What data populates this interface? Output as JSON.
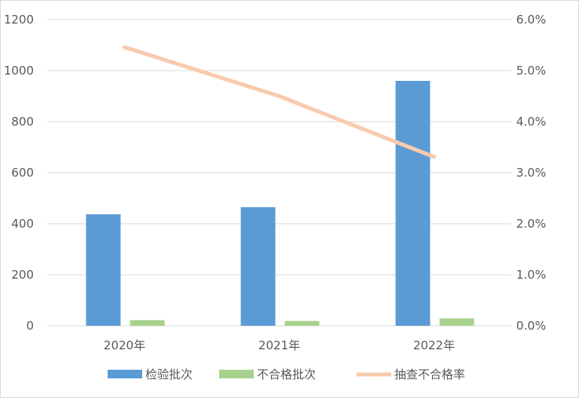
{
  "chart_data": {
    "type": "bar",
    "categories": [
      "2020年",
      "2021年",
      "2022年"
    ],
    "series": [
      {
        "name": "检验批次",
        "type": "bar",
        "axis": "left",
        "color": "#5b9bd5",
        "values": [
          437,
          465,
          960
        ]
      },
      {
        "name": "不合格批次",
        "type": "bar",
        "axis": "left",
        "color": "#a9d18e",
        "values": [
          22,
          19,
          29
        ]
      },
      {
        "name": "抽查不合格率",
        "type": "line",
        "axis": "right",
        "color": "#f8cbad",
        "values": [
          5.46,
          4.5,
          3.31
        ]
      }
    ],
    "ylim": [
      0,
      1200
    ],
    "yticks": [
      "0",
      "200",
      "400",
      "600",
      "800",
      "1000",
      "1200"
    ],
    "y2lim": [
      0,
      6
    ],
    "y2ticks": [
      "0.0%",
      "1.0%",
      "2.0%",
      "3.0%",
      "4.0%",
      "5.0%",
      "6.0%"
    ],
    "grid": true,
    "legend": "bottom"
  }
}
